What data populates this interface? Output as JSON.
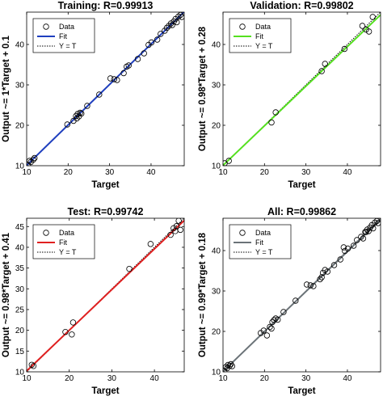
{
  "colors": {
    "training": "#1f3fbf",
    "validation": "#55e020",
    "test": "#e02020",
    "all": "#6b7378"
  },
  "chart_data": [
    {
      "type": "scatter",
      "title": "Training: R=0.99913",
      "xlabel": "Target",
      "ylabel": "Output ~= 1*Target + 0.1",
      "xlim": [
        10,
        48
      ],
      "ylim": [
        10,
        48
      ],
      "xticks": [
        10,
        20,
        30,
        40
      ],
      "yticks": [
        10,
        20,
        30,
        40
      ],
      "grid": false,
      "legend_position": "top-left",
      "legend": [
        "Data",
        "Fit",
        "Y = T"
      ],
      "fit": {
        "slope": 1,
        "intercept": 0.1
      },
      "series": [
        {
          "name": "Data",
          "x": [
            10.3,
            10.7,
            11,
            11.6,
            11.9,
            19.8,
            21.3,
            21.9,
            22.1,
            22.3,
            22.6,
            22.9,
            23.2,
            24.6,
            27.5,
            30.2,
            31.1,
            31.8,
            33.4,
            34.1,
            34.6,
            36.8,
            38.3,
            39.4,
            40.1,
            41.5,
            42.3,
            43.3,
            43.8,
            44.3,
            44.8,
            45.1,
            45.5,
            45.9,
            46.2,
            46.6,
            47.1,
            47.4
          ],
          "y": [
            10.2,
            11.2,
            10.9,
            11.5,
            11.9,
            20.2,
            21.1,
            22.3,
            21.7,
            22.8,
            22.2,
            23.1,
            22.9,
            24.8,
            27.6,
            31.6,
            31.4,
            31.2,
            32.9,
            34.5,
            34.8,
            36.4,
            37.8,
            39.9,
            40.5,
            41.2,
            42.6,
            43.4,
            44.1,
            44.6,
            45.2,
            44.8,
            45.7,
            46.3,
            45.5,
            46.9,
            47.3,
            46.8
          ]
        }
      ]
    },
    {
      "type": "scatter",
      "title": "Validation: R=0.99802",
      "xlabel": "Target",
      "ylabel": "Output ~= 0.98*Target + 0.28",
      "xlim": [
        10,
        48
      ],
      "ylim": [
        10,
        48
      ],
      "xticks": [
        10,
        20,
        30,
        40
      ],
      "yticks": [
        10,
        20,
        30,
        40
      ],
      "grid": false,
      "legend_position": "top-left",
      "legend": [
        "Data",
        "Fit",
        "Y = T"
      ],
      "fit": {
        "slope": 0.98,
        "intercept": 0.28
      },
      "series": [
        {
          "name": "Data",
          "x": [
            10.4,
            11.4,
            21.7,
            22.7,
            33.8,
            34.6,
            39.3,
            43.6,
            44.5,
            45.2,
            46.1
          ],
          "y": [
            10.6,
            11.2,
            20.7,
            23.2,
            33.4,
            35.2,
            38.9,
            44.6,
            43.7,
            43.2,
            46.8
          ]
        }
      ]
    },
    {
      "type": "scatter",
      "title": "Test: R=0.99742",
      "xlabel": "Target",
      "ylabel": "Output ~= 0.98*Target + 0.41",
      "xlim": [
        10,
        47
      ],
      "ylim": [
        10,
        47
      ],
      "xticks": [
        10,
        20,
        30,
        40
      ],
      "yticks": [
        10,
        15,
        20,
        25,
        30,
        35,
        40,
        45
      ],
      "grid": false,
      "legend_position": "top-left",
      "legend": [
        "Data",
        "Fit",
        "Y = T"
      ],
      "fit": {
        "slope": 0.98,
        "intercept": 0.41
      },
      "series": [
        {
          "name": "Data",
          "x": [
            11.2,
            11.6,
            19.1,
            20.6,
            20.9,
            34.1,
            39.1,
            43.8,
            44.5,
            44.9,
            45.2,
            45.7,
            46.1
          ],
          "y": [
            11.7,
            11.4,
            19.6,
            19.0,
            21.9,
            34.8,
            40.8,
            43.0,
            44.6,
            43.9,
            45.1,
            46.4,
            44.2
          ]
        }
      ]
    },
    {
      "type": "scatter",
      "title": "All: R=0.99862",
      "xlabel": "Target",
      "ylabel": "Output ~= 0.99*Target + 0.18",
      "xlim": [
        10,
        48
      ],
      "ylim": [
        10,
        48
      ],
      "xticks": [
        10,
        20,
        30,
        40
      ],
      "yticks": [
        10,
        20,
        30,
        40
      ],
      "grid": false,
      "legend_position": "top-left",
      "legend": [
        "Data",
        "Fit",
        "Y = T"
      ],
      "fit": {
        "slope": 0.99,
        "intercept": 0.18
      },
      "series": [
        {
          "name": "Data",
          "x": [
            10.3,
            10.7,
            11,
            11.2,
            11.6,
            11.9,
            12.2,
            19.1,
            19.8,
            20.6,
            21.3,
            21.7,
            21.9,
            22.3,
            22.7,
            23.2,
            24.6,
            27.5,
            30.2,
            31.1,
            31.8,
            33.4,
            33.8,
            34.1,
            34.6,
            35.2,
            36.8,
            38.3,
            39.1,
            39.4,
            40.1,
            41.5,
            42.3,
            43.3,
            43.8,
            44.3,
            44.5,
            44.8,
            45.1,
            45.5,
            45.9,
            46.2,
            46.6,
            47.1,
            47.4
          ],
          "y": [
            10.2,
            11.2,
            10.9,
            11.7,
            11.5,
            11.9,
            11.4,
            19.6,
            20.2,
            19.0,
            21.1,
            20.7,
            22.3,
            22.8,
            23.2,
            22.9,
            24.8,
            27.6,
            31.6,
            31.4,
            31.2,
            32.9,
            33.4,
            34.5,
            35.2,
            34.8,
            36.4,
            37.8,
            40.8,
            39.9,
            40.5,
            41.2,
            42.6,
            43.4,
            43.0,
            44.6,
            44.6,
            45.2,
            44.8,
            45.7,
            46.3,
            45.5,
            46.9,
            47.3,
            46.8
          ]
        }
      ]
    }
  ]
}
